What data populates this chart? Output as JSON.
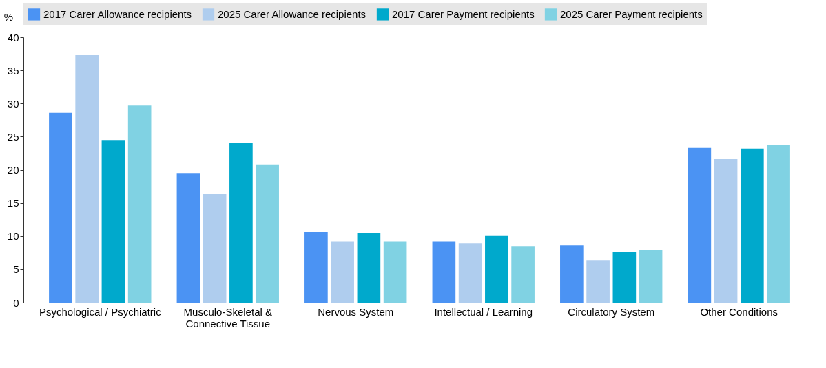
{
  "chart_data": {
    "type": "bar",
    "ylabel": "%",
    "categories": [
      "Psychological / Psychiatric",
      "Musculo-Skeletal &\nConnective Tissue",
      "Nervous System",
      "Intellectual / Learning",
      "Circulatory System",
      "Other Conditions"
    ],
    "series": [
      {
        "name": "2017 Carer Allowance recipients",
        "color": "#4b93f3",
        "values": [
          28.6,
          19.5,
          10.6,
          9.2,
          8.6,
          23.3
        ]
      },
      {
        "name": "2025 Carer Allowance recipients",
        "color": "#afcdee",
        "values": [
          37.3,
          16.4,
          9.2,
          8.9,
          6.3,
          21.6
        ]
      },
      {
        "name": "2017 Carer Payment recipients",
        "color": "#00a9cc",
        "values": [
          24.5,
          24.1,
          10.5,
          10.1,
          7.6,
          23.2
        ]
      },
      {
        "name": "2025 Carer Payment recipients",
        "color": "#80d2e3",
        "values": [
          29.7,
          20.8,
          9.2,
          8.5,
          7.9,
          23.7
        ]
      }
    ],
    "ylim": [
      0,
      40
    ],
    "yticks": [
      0,
      5,
      10,
      15,
      20,
      25,
      30,
      35,
      40
    ],
    "grid": true,
    "legend": "top"
  }
}
